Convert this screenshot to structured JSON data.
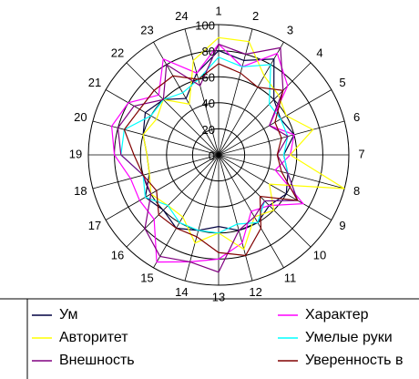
{
  "chart_data": {
    "type": "radar",
    "categories": [
      "1",
      "2",
      "3",
      "4",
      "5",
      "6",
      "7",
      "8",
      "9",
      "10",
      "11",
      "12",
      "13",
      "14",
      "15",
      "16",
      "17",
      "18",
      "19",
      "20",
      "21",
      "22",
      "23",
      "24"
    ],
    "rlim": [
      0,
      100
    ],
    "rticks": [
      0,
      20,
      40,
      60,
      80,
      100
    ],
    "grid": true,
    "legend": "bottom",
    "series": [
      {
        "name": "Ум",
        "color": "#000040",
        "values": [
          80,
          75,
          85,
          60,
          55,
          60,
          50,
          55,
          60,
          55,
          60,
          60,
          55,
          60,
          65,
          60,
          65,
          55,
          55,
          60,
          65,
          60,
          50,
          65
        ]
      },
      {
        "name": "Характер",
        "color": "#ff00ff",
        "values": [
          85,
          70,
          90,
          75,
          45,
          60,
          55,
          45,
          75,
          55,
          50,
          70,
          80,
          85,
          95,
          70,
          70,
          70,
          80,
          85,
          80,
          65,
          85,
          65
        ]
      },
      {
        "name": "Авторитет",
        "color": "#ffff00",
        "values": [
          90,
          90,
          70,
          65,
          60,
          75,
          55,
          100,
          45,
          60,
          55,
          75,
          60,
          70,
          55,
          55,
          60,
          55,
          55,
          60,
          55,
          60,
          45,
          75
        ]
      },
      {
        "name": "Умелые руки",
        "color": "#00ffff",
        "values": [
          75,
          70,
          80,
          55,
          55,
          55,
          50,
          55,
          70,
          50,
          60,
          55,
          60,
          60,
          60,
          55,
          65,
          60,
          75,
          75,
          60,
          60,
          55,
          60
        ]
      },
      {
        "name": "Внешность",
        "color": "#800080",
        "values": [
          85,
          80,
          95,
          70,
          45,
          55,
          45,
          55,
          70,
          50,
          55,
          60,
          90,
          85,
          90,
          80,
          60,
          60,
          75,
          80,
          75,
          60,
          80,
          55
        ]
      },
      {
        "name": "Уверенность в",
        "color": "#800000",
        "values": [
          70,
          65,
          60,
          70,
          50,
          50,
          45,
          50,
          70,
          45,
          65,
          80,
          75,
          65,
          65,
          65,
          55,
          60,
          65,
          75,
          70,
          70,
          70,
          60
        ]
      }
    ]
  }
}
